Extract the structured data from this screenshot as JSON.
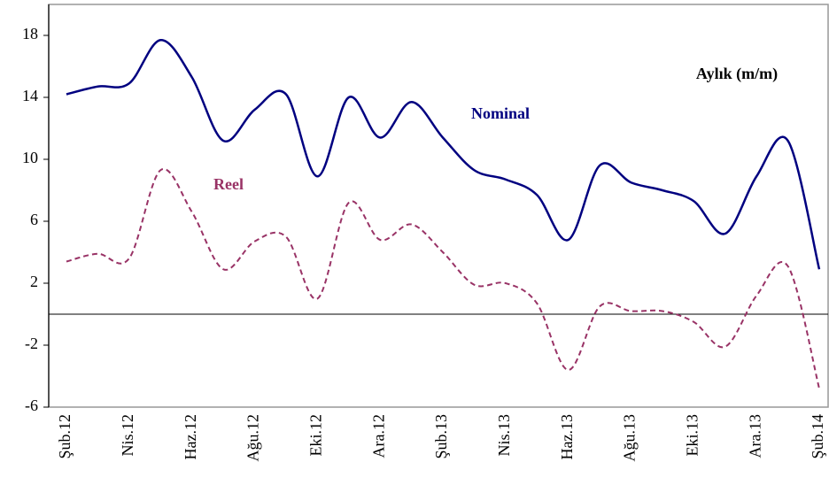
{
  "chart_data": {
    "type": "line",
    "annotations": [
      "Aylık (m/m)"
    ],
    "categories": [
      "Şub.12",
      null,
      "Nis.12",
      null,
      "Haz.12",
      null,
      "Ağu.12",
      null,
      "Eki.12",
      null,
      "Ara.12",
      null,
      "Şub.13",
      null,
      "Nis.13",
      null,
      "Haz.13",
      null,
      "Ağu.13",
      null,
      "Eki.13",
      null,
      "Ara.13",
      null,
      "Şub.14"
    ],
    "series": [
      {
        "name": "Nominal",
        "color": "#000080",
        "dash": false,
        "values": [
          14.2,
          14.7,
          14.9,
          17.7,
          15.3,
          11.2,
          13.2,
          14.2,
          8.9,
          14.0,
          11.4,
          13.7,
          11.4,
          9.3,
          8.7,
          7.7,
          4.8,
          9.6,
          8.5,
          8.0,
          7.3,
          5.2,
          8.9,
          11.2,
          2.9
        ]
      },
      {
        "name": "Reel",
        "color": "#993366",
        "dash": true,
        "values": [
          3.4,
          3.9,
          3.6,
          9.3,
          6.6,
          2.9,
          4.7,
          5.0,
          1.0,
          7.2,
          4.8,
          5.8,
          4.0,
          1.9,
          2.0,
          0.7,
          -3.6,
          0.5,
          0.2,
          0.2,
          -0.5,
          -2.1,
          1.2,
          3.1,
          -4.8
        ]
      }
    ],
    "ylim": [
      -6,
      20
    ],
    "yticks": [
      -6,
      -2,
      2,
      6,
      10,
      14,
      18
    ]
  }
}
